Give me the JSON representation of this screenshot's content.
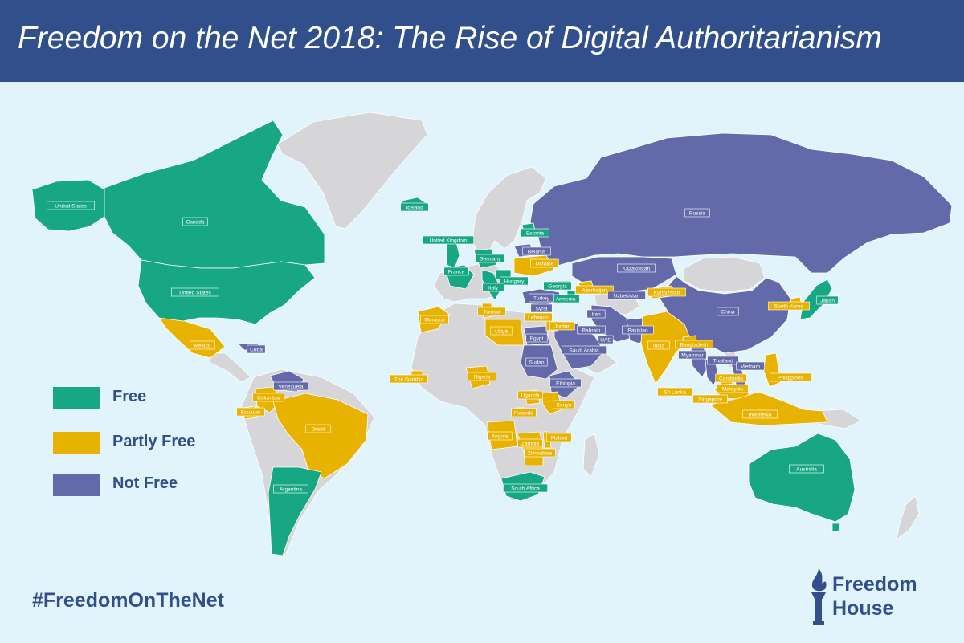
{
  "title": "Freedom on the Net 2018: The Rise of Digital Authoritarianism",
  "hashtag": "#FreedomOnTheNet",
  "logo": {
    "line1": "Freedom",
    "line2": "House"
  },
  "colors": {
    "free": "#17a784",
    "partly_free": "#e8b300",
    "not_free": "#6469a9",
    "not_assessed": "#d6d6d8",
    "ocean": "#e2f4fb",
    "header": "#314f8b",
    "text": "#314f8b"
  },
  "legend": [
    {
      "status": "free",
      "label": "Free"
    },
    {
      "status": "partly_free",
      "label": "Partly Free"
    },
    {
      "status": "not_free",
      "label": "Not Free"
    }
  ],
  "countries": [
    {
      "name": "United States",
      "status": "free"
    },
    {
      "name": "Canada",
      "status": "free"
    },
    {
      "name": "United States",
      "status": "free"
    },
    {
      "name": "Mexico",
      "status": "partly_free"
    },
    {
      "name": "Cuba",
      "status": "not_free"
    },
    {
      "name": "Venezuela",
      "status": "not_free"
    },
    {
      "name": "Colombia",
      "status": "partly_free"
    },
    {
      "name": "Ecuador",
      "status": "partly_free"
    },
    {
      "name": "Brazil",
      "status": "partly_free"
    },
    {
      "name": "Argentina",
      "status": "free"
    },
    {
      "name": "Iceland",
      "status": "free"
    },
    {
      "name": "United Kingdom",
      "status": "free"
    },
    {
      "name": "Estonia",
      "status": "free"
    },
    {
      "name": "Belarus",
      "status": "not_free"
    },
    {
      "name": "Germany",
      "status": "free"
    },
    {
      "name": "Ukraine",
      "status": "partly_free"
    },
    {
      "name": "France",
      "status": "free"
    },
    {
      "name": "Hungary",
      "status": "free"
    },
    {
      "name": "Italy",
      "status": "free"
    },
    {
      "name": "Georgia",
      "status": "free"
    },
    {
      "name": "Armenia",
      "status": "free"
    },
    {
      "name": "Azerbaijan",
      "status": "partly_free"
    },
    {
      "name": "Turkey",
      "status": "not_free"
    },
    {
      "name": "Syria",
      "status": "not_free"
    },
    {
      "name": "Lebanon",
      "status": "partly_free"
    },
    {
      "name": "Jordan",
      "status": "partly_free"
    },
    {
      "name": "Iran",
      "status": "not_free"
    },
    {
      "name": "Bahrain",
      "status": "not_free"
    },
    {
      "name": "UAE",
      "status": "not_free"
    },
    {
      "name": "Saudi Arabia",
      "status": "not_free"
    },
    {
      "name": "Russia",
      "status": "not_free"
    },
    {
      "name": "Kazakhstan",
      "status": "not_free"
    },
    {
      "name": "Uzbekistan",
      "status": "not_free"
    },
    {
      "name": "Kyrgyzstan",
      "status": "partly_free"
    },
    {
      "name": "China",
      "status": "not_free"
    },
    {
      "name": "South Korea",
      "status": "partly_free"
    },
    {
      "name": "Japan",
      "status": "free"
    },
    {
      "name": "Pakistan",
      "status": "not_free"
    },
    {
      "name": "India",
      "status": "partly_free"
    },
    {
      "name": "Bangladesh",
      "status": "partly_free"
    },
    {
      "name": "Myanmar",
      "status": "not_free"
    },
    {
      "name": "Thailand",
      "status": "not_free"
    },
    {
      "name": "Vietnam",
      "status": "not_free"
    },
    {
      "name": "Cambodia",
      "status": "partly_free"
    },
    {
      "name": "Philippines",
      "status": "partly_free"
    },
    {
      "name": "Malaysia",
      "status": "partly_free"
    },
    {
      "name": "Sri Lanka",
      "status": "partly_free"
    },
    {
      "name": "Singapore",
      "status": "partly_free"
    },
    {
      "name": "Indonesia",
      "status": "partly_free"
    },
    {
      "name": "Australia",
      "status": "free"
    },
    {
      "name": "Morocco",
      "status": "partly_free"
    },
    {
      "name": "Tunisia",
      "status": "partly_free"
    },
    {
      "name": "Libya",
      "status": "partly_free"
    },
    {
      "name": "Egypt",
      "status": "not_free"
    },
    {
      "name": "Sudan",
      "status": "not_free"
    },
    {
      "name": "Ethiopia",
      "status": "not_free"
    },
    {
      "name": "The Gambia",
      "status": "partly_free"
    },
    {
      "name": "Nigeria",
      "status": "partly_free"
    },
    {
      "name": "Uganda",
      "status": "partly_free"
    },
    {
      "name": "Kenya",
      "status": "partly_free"
    },
    {
      "name": "Rwanda",
      "status": "partly_free"
    },
    {
      "name": "Angola",
      "status": "partly_free"
    },
    {
      "name": "Malawi",
      "status": "partly_free"
    },
    {
      "name": "Zambia",
      "status": "partly_free"
    },
    {
      "name": "Zimbabwe",
      "status": "partly_free"
    },
    {
      "name": "South Africa",
      "status": "free"
    }
  ]
}
